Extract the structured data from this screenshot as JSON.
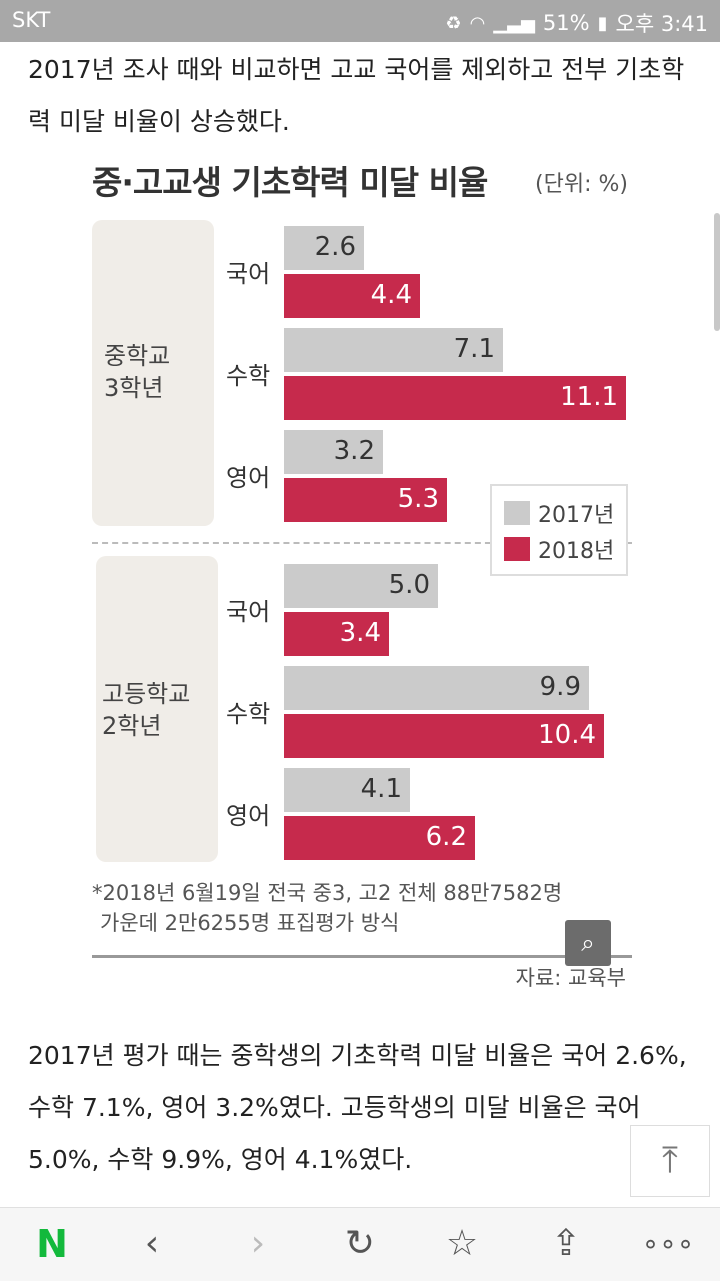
{
  "status_bar": {
    "carrier": "SKT",
    "battery": "51%",
    "time": "오후 3:41"
  },
  "article": {
    "paragraph1": "2017년 조사 때와 비교하면 고교 국어를 제외하고 전부 기초학력 미달 비율이 상승했다.",
    "paragraph2": "2017년 평가 때는 중학생의 기초학력 미달 비율은 국어 2.6%, 수학 7.1%, 영어 3.2%였다. 고등학생의 미달 비율은 국어 5.0%, 수학 9.9%, 영어 4.1%였다."
  },
  "chart_data": {
    "type": "bar",
    "orientation": "horizontal",
    "title": "중·고교생 기초학력 미달 비율",
    "unit_label": "(단위: %)",
    "groups": [
      {
        "name": "중학교 3학년",
        "categories": [
          "국어",
          "수학",
          "영어"
        ],
        "series": [
          {
            "name": "2017년",
            "values": [
              2.6,
              7.1,
              3.2
            ],
            "labels": [
              "2.6",
              "7.1",
              "3.2"
            ]
          },
          {
            "name": "2018년",
            "values": [
              4.4,
              11.1,
              5.3
            ],
            "labels": [
              "4.4",
              "11.1",
              "5.3"
            ]
          }
        ]
      },
      {
        "name": "고등학교 2학년",
        "categories": [
          "국어",
          "수학",
          "영어"
        ],
        "series": [
          {
            "name": "2017년",
            "values": [
              5.0,
              9.9,
              4.1
            ],
            "labels": [
              "5.0",
              "9.9",
              "4.1"
            ]
          },
          {
            "name": "2018년",
            "values": [
              3.4,
              10.4,
              6.2
            ],
            "labels": [
              "3.4",
              "10.4",
              "6.2"
            ]
          }
        ]
      }
    ],
    "legend": [
      "2017년",
      "2018년"
    ],
    "legend_position": "middle-right",
    "colors": {
      "2017": "#cbcbcb",
      "2018": "#c62a4c"
    },
    "xlim": [
      0,
      11.1
    ],
    "footnote_line1": "*2018년 6월19일 전국 중3, 고2 전체 88만7582명",
    "footnote_line2": "가운데 2만6255명 표집평가 방식",
    "source": "자료: 교육부"
  },
  "nav": {
    "icons": [
      "naver-logo-icon",
      "back-icon",
      "forward-icon",
      "reload-icon",
      "bookmark-icon",
      "share-icon",
      "more-icon"
    ],
    "logo_text": "N"
  }
}
